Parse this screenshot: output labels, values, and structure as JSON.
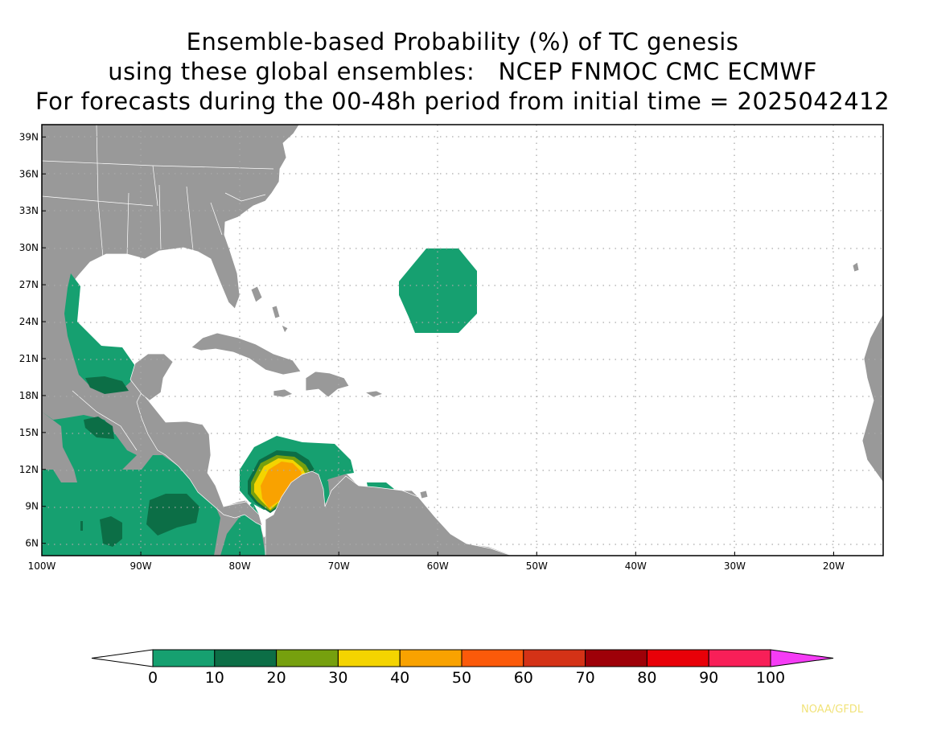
{
  "title": {
    "line1": "Ensemble-based Probability (%) of TC genesis",
    "line2": "using these global ensembles:   NCEP FNMOC CMC ECMWF",
    "line3": "For forecasts during the 00-48h period from initial time = 2025042412"
  },
  "map": {
    "lon_range": [
      -100,
      -15
    ],
    "lat_range": [
      5,
      40
    ],
    "lat_ticks": [
      {
        "value": 39,
        "label": "39N"
      },
      {
        "value": 36,
        "label": "36N"
      },
      {
        "value": 33,
        "label": "33N"
      },
      {
        "value": 30,
        "label": "30N"
      },
      {
        "value": 27,
        "label": "27N"
      },
      {
        "value": 24,
        "label": "24N"
      },
      {
        "value": 21,
        "label": "21N"
      },
      {
        "value": 18,
        "label": "18N"
      },
      {
        "value": 15,
        "label": "15N"
      },
      {
        "value": 12,
        "label": "12N"
      },
      {
        "value": 9,
        "label": "9N"
      },
      {
        "value": 6,
        "label": "6N"
      }
    ],
    "lon_ticks": [
      {
        "value": -100,
        "label": "100W"
      },
      {
        "value": -90,
        "label": "90W"
      },
      {
        "value": -80,
        "label": "80W"
      },
      {
        "value": -70,
        "label": "70W"
      },
      {
        "value": -60,
        "label": "60W"
      },
      {
        "value": -50,
        "label": "50W"
      },
      {
        "value": -40,
        "label": "40W"
      },
      {
        "value": -30,
        "label": "30W"
      },
      {
        "value": -20,
        "label": "20W"
      }
    ],
    "land_color": "#999999",
    "grid": "dotted"
  },
  "colorbar": {
    "labels": [
      "0",
      "10",
      "20",
      "30",
      "40",
      "50",
      "60",
      "70",
      "80",
      "90",
      "100"
    ],
    "colors": [
      "#16a070",
      "#0c6e46",
      "#76a00e",
      "#f4d400",
      "#f9a200",
      "#fb5a0a",
      "#d43216",
      "#9e0008",
      "#e80008",
      "#f81f58"
    ],
    "over_color": "#f53cf5",
    "under_color": "#ffffff"
  },
  "credit": "NOAA/GFDL"
}
